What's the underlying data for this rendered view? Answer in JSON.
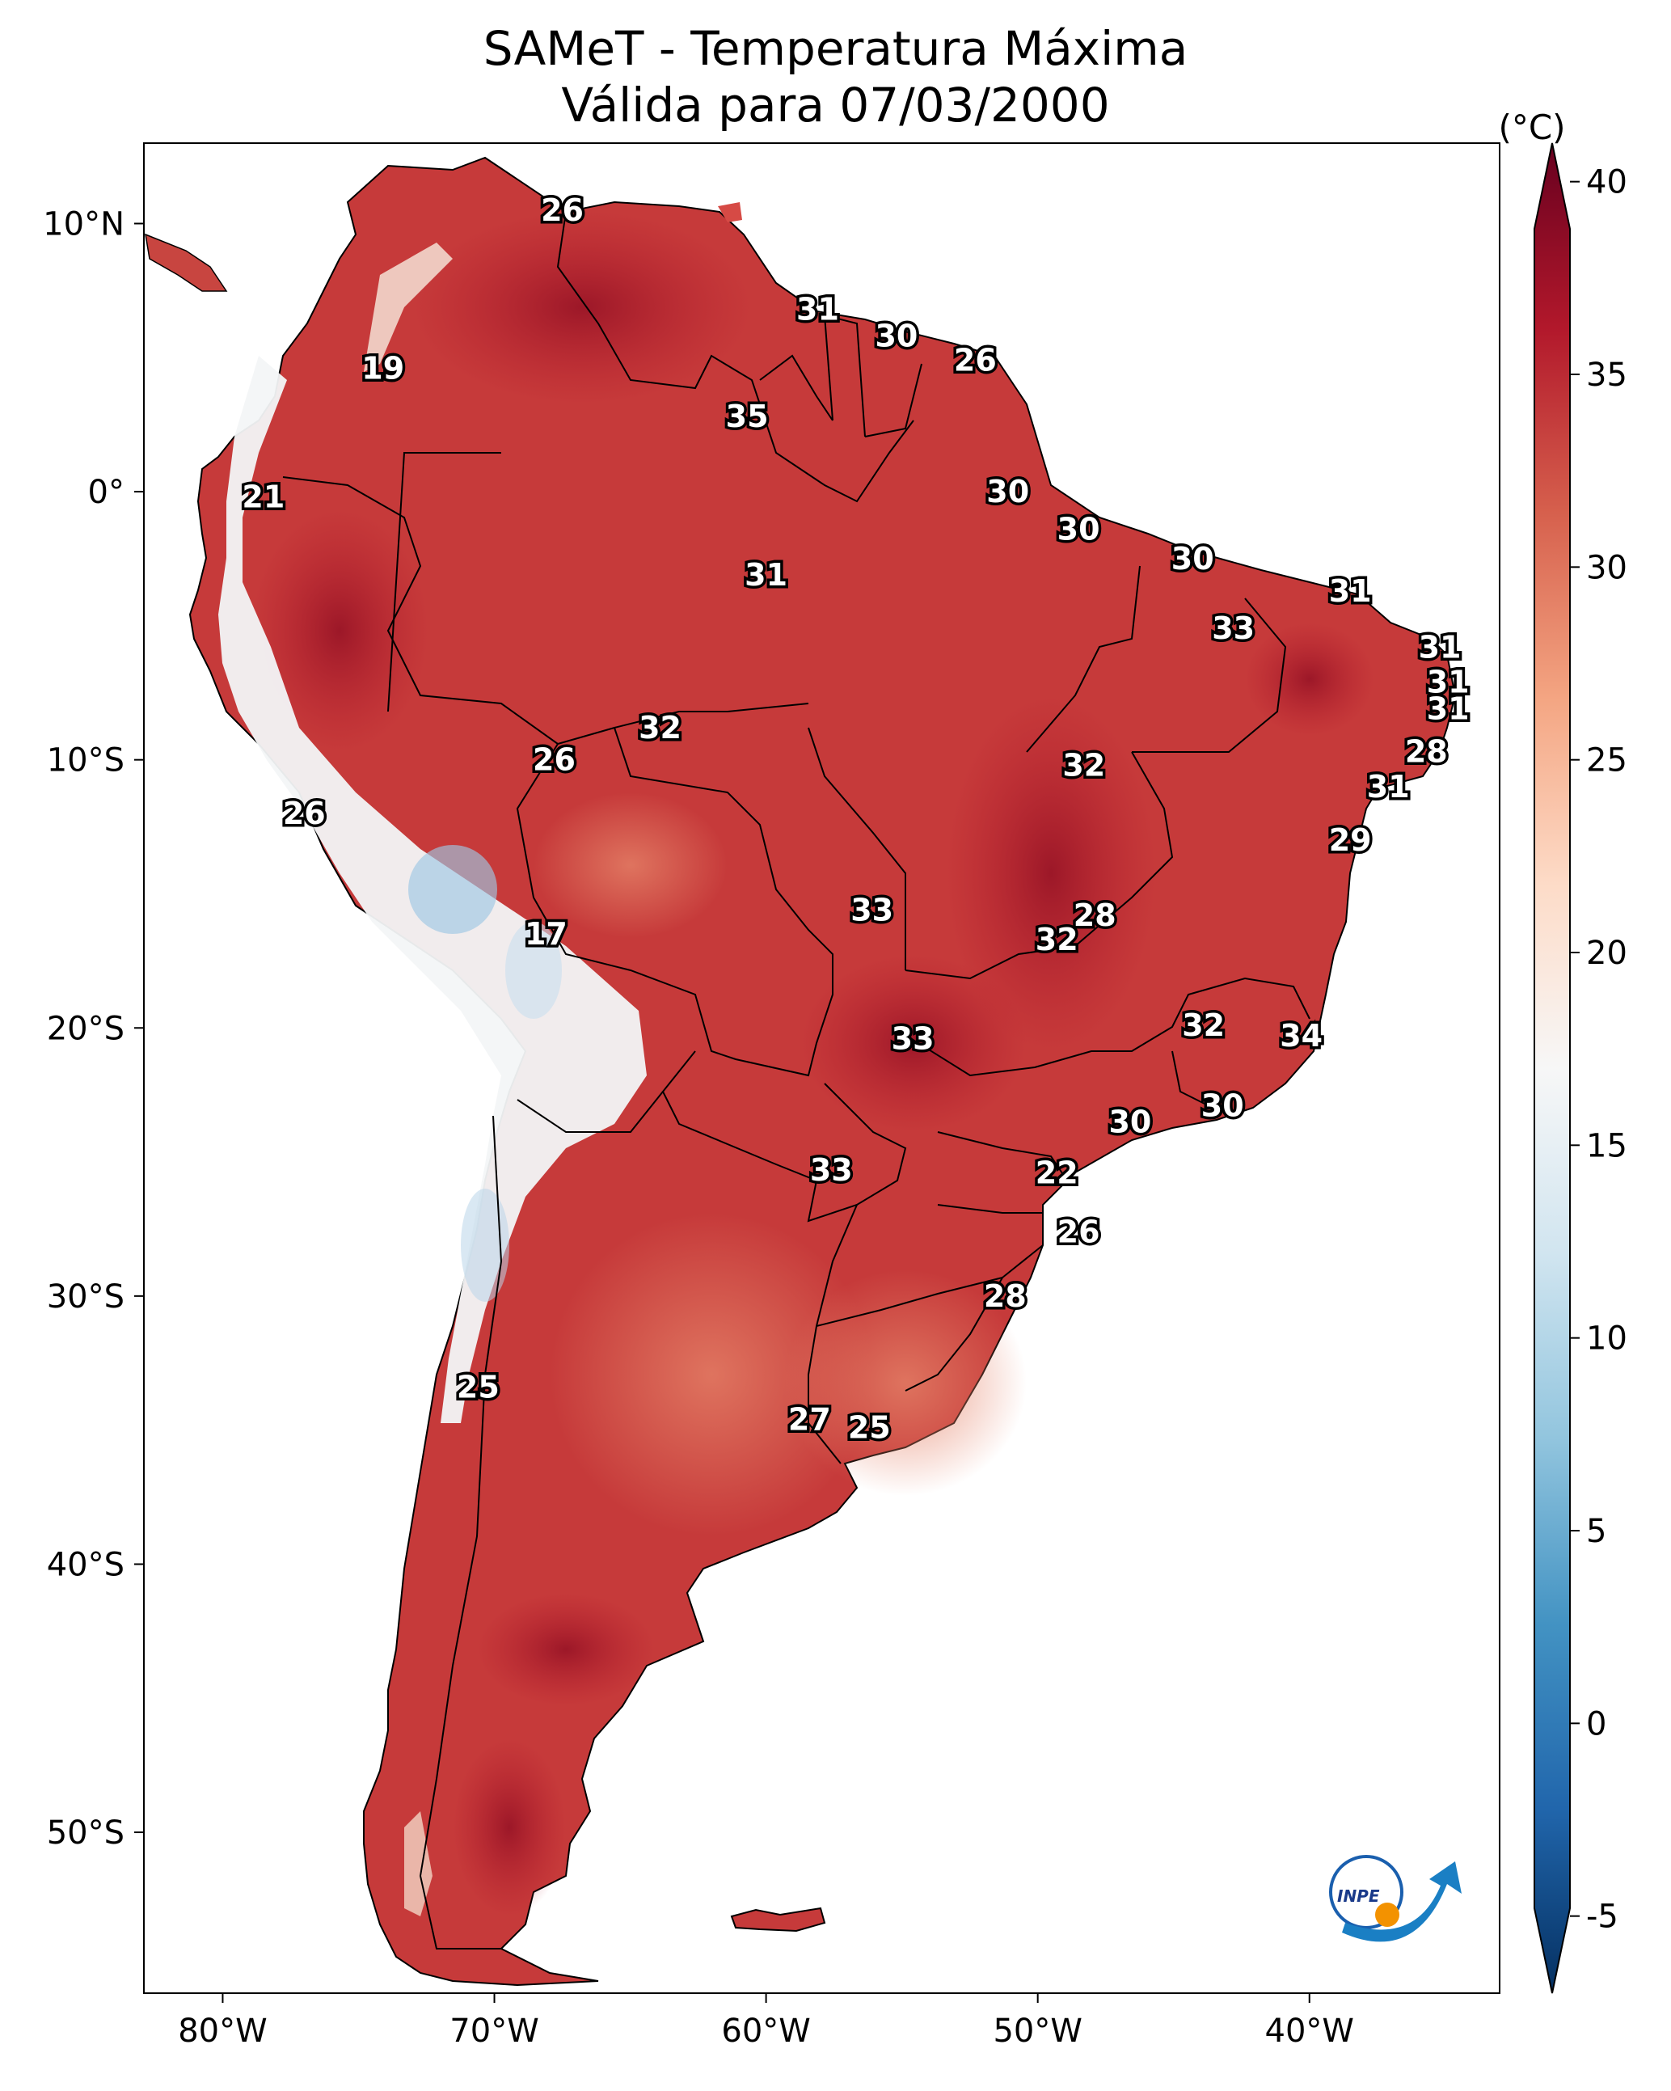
{
  "title": {
    "line1": "SAMeT - Temperatura Máxima",
    "line2": "Válida para 07/03/2000"
  },
  "colorbar": {
    "unit": "(°C)",
    "ticks": [
      "40",
      "35",
      "30",
      "25",
      "20",
      "15",
      "10",
      "5",
      "0",
      "-5"
    ],
    "min": -7,
    "max": 41,
    "colors": [
      "#053061",
      "#2166ac",
      "#4393c3",
      "#92c5de",
      "#d1e5f0",
      "#f7f7f7",
      "#fddbc7",
      "#f4a582",
      "#d6604d",
      "#b2182b",
      "#67001f"
    ]
  },
  "axes": {
    "lat_ticks": [
      "10°N",
      "0°",
      "10°S",
      "20°S",
      "30°S",
      "40°S",
      "50°S"
    ],
    "lon_ticks": [
      "80°W",
      "70°W",
      "60°W",
      "50°W",
      "40°W"
    ]
  },
  "map": {
    "lon_min": -82.9,
    "lon_max": -33.0,
    "lat_min": -56.0,
    "lat_max": 13.0
  },
  "labels": [
    {
      "v": "26",
      "lat": 10.5,
      "lon": -67.5
    },
    {
      "v": "31",
      "lat": 6.8,
      "lon": -58.1
    },
    {
      "v": "30",
      "lat": 5.8,
      "lon": -55.2
    },
    {
      "v": "26",
      "lat": 4.9,
      "lon": -52.3
    },
    {
      "v": "19",
      "lat": 4.6,
      "lon": -74.1
    },
    {
      "v": "35",
      "lat": 2.8,
      "lon": -60.7
    },
    {
      "v": "21",
      "lat": -0.2,
      "lon": -78.5
    },
    {
      "v": "30",
      "lat": 0.0,
      "lon": -51.1
    },
    {
      "v": "30",
      "lat": -1.4,
      "lon": -48.5
    },
    {
      "v": "30",
      "lat": -2.5,
      "lon": -44.3
    },
    {
      "v": "31",
      "lat": -3.1,
      "lon": -60.0
    },
    {
      "v": "31",
      "lat": -3.7,
      "lon": -38.5
    },
    {
      "v": "33",
      "lat": -5.1,
      "lon": -42.8
    },
    {
      "v": "31",
      "lat": -5.8,
      "lon": -35.2
    },
    {
      "v": "31",
      "lat": -7.1,
      "lon": -34.9
    },
    {
      "v": "31",
      "lat": -8.1,
      "lon": -34.9
    },
    {
      "v": "32",
      "lat": -8.8,
      "lon": -63.9
    },
    {
      "v": "28",
      "lat": -9.7,
      "lon": -35.7
    },
    {
      "v": "26",
      "lat": -10.0,
      "lon": -67.8
    },
    {
      "v": "32",
      "lat": -10.2,
      "lon": -48.3
    },
    {
      "v": "31",
      "lat": -11.0,
      "lon": -37.1
    },
    {
      "v": "26",
      "lat": -12.0,
      "lon": -77.0
    },
    {
      "v": "29",
      "lat": -13.0,
      "lon": -38.5
    },
    {
      "v": "33",
      "lat": -15.6,
      "lon": -56.1
    },
    {
      "v": "28",
      "lat": -15.8,
      "lon": -47.9
    },
    {
      "v": "32",
      "lat": -16.7,
      "lon": -49.3
    },
    {
      "v": "17",
      "lat": -16.5,
      "lon": -68.1
    },
    {
      "v": "32",
      "lat": -19.9,
      "lon": -43.9
    },
    {
      "v": "34",
      "lat": -20.3,
      "lon": -40.3
    },
    {
      "v": "33",
      "lat": -20.4,
      "lon": -54.6
    },
    {
      "v": "30",
      "lat": -22.9,
      "lon": -43.2
    },
    {
      "v": "30",
      "lat": -23.5,
      "lon": -46.6
    },
    {
      "v": "22",
      "lat": -25.4,
      "lon": -49.3
    },
    {
      "v": "33",
      "lat": -25.3,
      "lon": -57.6
    },
    {
      "v": "26",
      "lat": -27.6,
      "lon": -48.5
    },
    {
      "v": "28",
      "lat": -30.0,
      "lon": -51.2
    },
    {
      "v": "25",
      "lat": -33.4,
      "lon": -70.6
    },
    {
      "v": "27",
      "lat": -34.6,
      "lon": -58.4
    },
    {
      "v": "25",
      "lat": -34.9,
      "lon": -56.2
    }
  ],
  "logo": {
    "text": "INPE"
  }
}
